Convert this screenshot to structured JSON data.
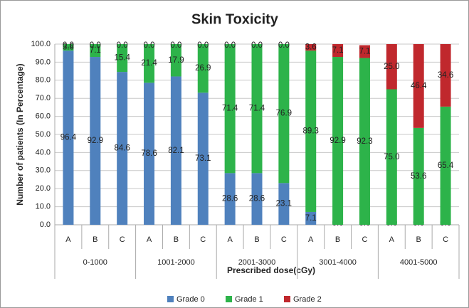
{
  "chart_data": {
    "type": "stacked_bar",
    "title": "Skin Toxicity",
    "x_label": "Prescribed dose(cGy)",
    "y_label": "Number of patients (In Percentage)",
    "categories": [
      "A",
      "B",
      "C",
      "A",
      "B",
      "C",
      "A",
      "B",
      "C",
      "A",
      "B",
      "C",
      "A",
      "B",
      "C"
    ],
    "groups": [
      "0-1000",
      "1001-2000",
      "2001-3000",
      "3001-4000",
      "4001-5000"
    ],
    "series": [
      {
        "name": "Grade 0",
        "color": "#4f81bd",
        "values": [
          96.4,
          92.9,
          84.6,
          78.6,
          82.1,
          73.1,
          28.6,
          28.6,
          23.1,
          7.1,
          0,
          0,
          0,
          0,
          0
        ],
        "value_labels": [
          "96.4",
          "92.9",
          "84.6",
          "78.6",
          "82.1",
          "73.1",
          "28.6",
          "28.6",
          "23.1",
          "7.1",
          "0.0",
          "0.0",
          "0.0",
          "0.0",
          "0.0"
        ]
      },
      {
        "name": "Grade 1",
        "color": "#2db34a",
        "values": [
          3.6,
          7.1,
          15.4,
          21.4,
          17.9,
          26.9,
          71.4,
          71.4,
          76.9,
          89.3,
          92.9,
          92.3,
          75,
          53.6,
          65.4
        ],
        "value_labels": [
          "3.6",
          "7.1",
          "15.4",
          "21.4",
          "17.9",
          "26.9",
          "71.4",
          "71.4",
          "76.9",
          "89.3",
          "92.9",
          "92.3",
          "75.0",
          "53.6",
          "65.4"
        ]
      },
      {
        "name": "Grade 2",
        "color": "#c0282d",
        "values": [
          0,
          0,
          0,
          0,
          0,
          0,
          0,
          0,
          0,
          3.6,
          7.1,
          7.1,
          25,
          46.4,
          34.6
        ],
        "value_labels": [
          "0.0",
          "0.0",
          "0.0",
          "0.0",
          "0.0",
          "0.0",
          "0.0",
          "0.0",
          "0.0",
          "3.6",
          "7.1",
          "7.1",
          "25.0",
          "46.4",
          "34.6"
        ]
      }
    ],
    "ylim": [
      0,
      100
    ],
    "yticks": [
      {
        "value": 0,
        "label": "0.0"
      },
      {
        "value": 10,
        "label": "10.0"
      },
      {
        "value": 20,
        "label": "20.0"
      },
      {
        "value": 30,
        "label": "30.0"
      },
      {
        "value": 40,
        "label": "40.0"
      },
      {
        "value": 50,
        "label": "50.0"
      },
      {
        "value": 60,
        "label": "60.0"
      },
      {
        "value": 70,
        "label": "70.0"
      },
      {
        "value": 80,
        "label": "80.0"
      },
      {
        "value": 90,
        "label": "90.0"
      },
      {
        "value": 100,
        "label": "100.0"
      }
    ],
    "grid": true,
    "legend": "bottom"
  }
}
